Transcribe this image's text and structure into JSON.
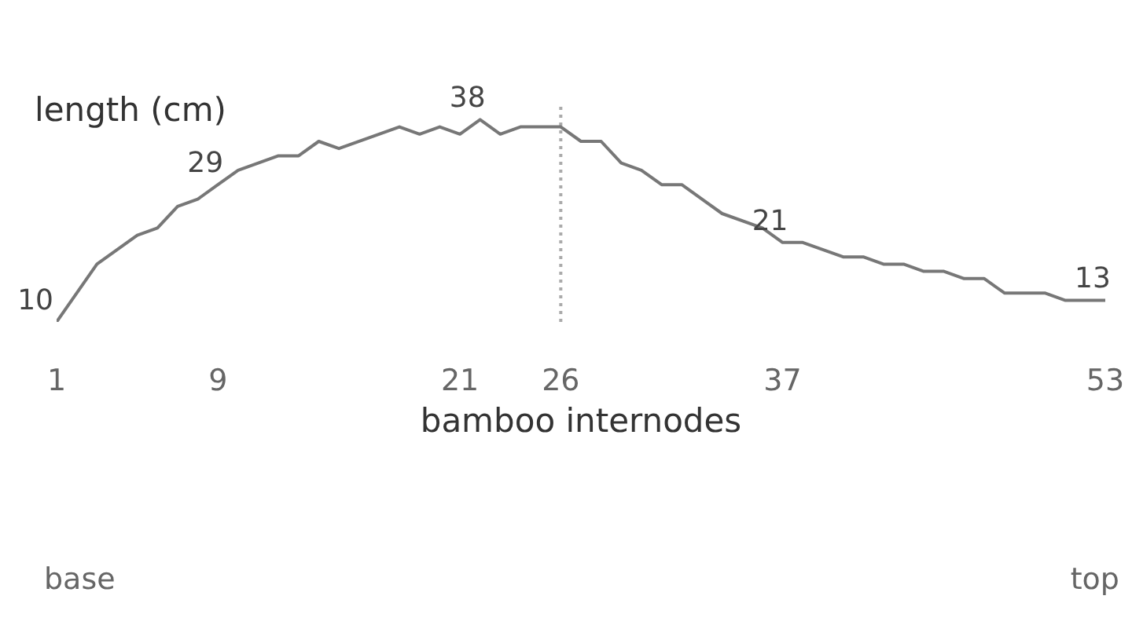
{
  "chart_data": {
    "type": "line",
    "xlabel": "bamboo internodes",
    "ylabel": "length (cm)",
    "x": [
      1,
      3,
      5,
      6,
      7,
      8,
      9,
      10,
      12,
      13,
      14,
      15,
      18,
      19,
      20,
      21,
      22,
      23,
      24,
      26,
      27,
      28,
      29,
      30,
      31,
      32,
      34,
      36,
      37,
      38,
      40,
      41,
      42,
      43,
      44,
      45,
      46,
      47,
      48,
      50,
      51,
      53
    ],
    "series": [
      {
        "color": "#777777",
        "values": [
          10,
          18,
          22,
          23,
          26,
          27,
          29,
          31,
          33,
          33,
          35,
          34,
          37,
          36,
          37,
          36,
          38,
          36,
          37,
          37,
          35,
          35,
          32,
          31,
          29,
          29,
          25,
          23,
          21,
          21,
          19,
          19,
          18,
          18,
          17,
          17,
          16,
          16,
          14,
          14,
          13,
          13
        ],
        "value_labels": [
          "10",
          null,
          null,
          null,
          null,
          null,
          "29",
          null,
          null,
          null,
          null,
          null,
          null,
          null,
          null,
          null,
          "38",
          null,
          null,
          null,
          null,
          null,
          null,
          null,
          null,
          null,
          null,
          null,
          "21",
          null,
          null,
          null,
          null,
          null,
          null,
          null,
          null,
          null,
          null,
          null,
          null,
          "13"
        ]
      }
    ],
    "xlim": [
      1,
      53
    ],
    "xticks": [
      1,
      9,
      21,
      26,
      37,
      53
    ],
    "ylim": [
      10,
      40
    ],
    "tick_labels": "x",
    "grid": false,
    "legend": false,
    "marker": "none",
    "line_style": "solid",
    "ref_lines": [
      {
        "axis": "x",
        "value": 26,
        "color": "#aaaaaa",
        "line_style": "dotted"
      }
    ],
    "annotations": [
      "base",
      "top"
    ]
  }
}
